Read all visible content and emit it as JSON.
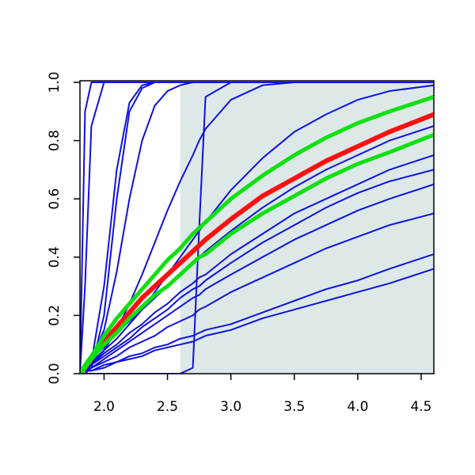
{
  "chart_data": {
    "type": "line",
    "x": [
      1.81,
      1.85,
      1.9,
      2.0,
      2.1,
      2.2,
      2.3,
      2.4,
      2.5,
      2.6,
      2.7,
      2.75,
      2.8,
      3.0,
      3.25,
      3.5,
      3.75,
      4.0,
      4.25,
      4.6
    ],
    "xlim": [
      1.81,
      4.6
    ],
    "ylim": [
      0,
      1
    ],
    "xticks": [
      {
        "value": 2,
        "label": "2.0"
      },
      {
        "value": 2.5,
        "label": "2.5"
      },
      {
        "value": 3,
        "label": "3.0"
      },
      {
        "value": 3.5,
        "label": "3.5"
      },
      {
        "value": 4,
        "label": "4.0"
      },
      {
        "value": 4.5,
        "label": "4.5"
      }
    ],
    "yticks": [
      {
        "value": 0,
        "label": "0.0"
      },
      {
        "value": 0.2,
        "label": "0.2"
      },
      {
        "value": 0.4,
        "label": "0.4"
      },
      {
        "value": 0.6,
        "label": "0.6"
      },
      {
        "value": 0.8,
        "label": "0.8"
      },
      {
        "value": 1,
        "label": "1.0"
      }
    ],
    "shade": {
      "xlim": [
        2.6,
        4.6
      ],
      "color": "#dde9e9"
    },
    "series": [
      {
        "color": "#1010e0",
        "width": 2,
        "values": [
          0,
          0.9,
          1,
          1,
          1,
          1,
          1,
          1,
          1,
          1,
          1,
          1,
          1,
          1,
          1,
          1,
          1,
          1,
          1,
          1
        ]
      },
      {
        "color": "#1010e0",
        "width": 2,
        "values": [
          0,
          0.3,
          0.85,
          1,
          1,
          1,
          1,
          1,
          1,
          1,
          1,
          1,
          1,
          1,
          1,
          1,
          1,
          1,
          1,
          1
        ]
      },
      {
        "color": "#1010e0",
        "width": 2,
        "values": [
          0,
          0,
          0.02,
          0.2,
          0.6,
          0.9,
          0.98,
          1,
          1,
          1,
          1,
          1,
          1,
          1,
          1,
          1,
          1,
          1,
          1,
          1
        ]
      },
      {
        "color": "#1010e0",
        "width": 2,
        "values": [
          0,
          0.01,
          0.04,
          0.3,
          0.7,
          0.93,
          0.99,
          1,
          1,
          1,
          1,
          1,
          1,
          1,
          1,
          1,
          1,
          1,
          1,
          1
        ]
      },
      {
        "color": "#1010e0",
        "width": 2,
        "values": [
          0,
          0.02,
          0.05,
          0.15,
          0.35,
          0.6,
          0.8,
          0.92,
          0.97,
          0.99,
          1,
          1,
          1,
          1,
          1,
          1,
          1,
          1,
          1,
          1
        ]
      },
      {
        "color": "#1010e0",
        "width": 2,
        "values": [
          0,
          0,
          0,
          0,
          0,
          0,
          0,
          0,
          0,
          0,
          0.02,
          0.5,
          0.95,
          1,
          1,
          1,
          1,
          1,
          1,
          1
        ]
      },
      {
        "color": "#1010e0",
        "width": 2,
        "values": [
          0,
          0.01,
          0.03,
          0.08,
          0.15,
          0.24,
          0.34,
          0.45,
          0.56,
          0.66,
          0.75,
          0.8,
          0.84,
          0.94,
          0.99,
          1,
          1,
          1,
          1,
          1
        ]
      },
      {
        "color": "#1010e0",
        "width": 2,
        "values": [
          0,
          0.02,
          0.04,
          0.08,
          0.12,
          0.17,
          0.22,
          0.28,
          0.34,
          0.4,
          0.46,
          0.49,
          0.52,
          0.63,
          0.74,
          0.83,
          0.89,
          0.94,
          0.97,
          0.99
        ]
      },
      {
        "color": "#1010e0",
        "width": 2,
        "values": [
          0,
          0.02,
          0.05,
          0.09,
          0.14,
          0.18,
          0.22,
          0.26,
          0.3,
          0.34,
          0.38,
          0.4,
          0.42,
          0.49,
          0.57,
          0.64,
          0.7,
          0.75,
          0.8,
          0.85
        ]
      },
      {
        "color": "#1010e0",
        "width": 2,
        "values": [
          0,
          0.01,
          0.03,
          0.06,
          0.09,
          0.12,
          0.16,
          0.19,
          0.22,
          0.26,
          0.29,
          0.3,
          0.32,
          0.38,
          0.45,
          0.51,
          0.57,
          0.62,
          0.66,
          0.7
        ]
      },
      {
        "color": "#1010e0",
        "width": 2,
        "values": [
          0,
          0.01,
          0.03,
          0.07,
          0.1,
          0.14,
          0.17,
          0.21,
          0.24,
          0.28,
          0.31,
          0.33,
          0.34,
          0.41,
          0.48,
          0.55,
          0.6,
          0.65,
          0.7,
          0.75
        ]
      },
      {
        "color": "#1010e0",
        "width": 2,
        "values": [
          0,
          0.01,
          0.02,
          0.05,
          0.08,
          0.11,
          0.14,
          0.17,
          0.2,
          0.23,
          0.26,
          0.27,
          0.29,
          0.34,
          0.4,
          0.46,
          0.51,
          0.56,
          0.6,
          0.65
        ]
      },
      {
        "color": "#1010e0",
        "width": 2,
        "values": [
          0,
          0.01,
          0.02,
          0.04,
          0.06,
          0.09,
          0.11,
          0.13,
          0.16,
          0.18,
          0.2,
          0.22,
          0.23,
          0.28,
          0.33,
          0.38,
          0.43,
          0.47,
          0.51,
          0.55
        ]
      },
      {
        "color": "#1010e0",
        "width": 2,
        "values": [
          0,
          0.01,
          0.01,
          0.03,
          0.04,
          0.06,
          0.07,
          0.09,
          0.1,
          0.12,
          0.13,
          0.14,
          0.15,
          0.17,
          0.21,
          0.25,
          0.29,
          0.32,
          0.36,
          0.41
        ]
      },
      {
        "color": "#1010e0",
        "width": 2,
        "values": [
          0,
          0.01,
          0.01,
          0.02,
          0.04,
          0.05,
          0.06,
          0.08,
          0.09,
          0.1,
          0.11,
          0.12,
          0.13,
          0.15,
          0.19,
          0.22,
          0.25,
          0.28,
          0.31,
          0.36
        ]
      },
      {
        "color": "#ff1010",
        "width": 6,
        "values": [
          0,
          0.02,
          0.05,
          0.11,
          0.16,
          0.21,
          0.26,
          0.3,
          0.34,
          0.38,
          0.42,
          0.44,
          0.46,
          0.53,
          0.61,
          0.67,
          0.73,
          0.78,
          0.83,
          0.89
        ]
      },
      {
        "color": "#10e010",
        "width": 5,
        "values": [
          0,
          0.03,
          0.06,
          0.13,
          0.19,
          0.24,
          0.29,
          0.34,
          0.39,
          0.43,
          0.48,
          0.5,
          0.52,
          0.6,
          0.68,
          0.75,
          0.81,
          0.86,
          0.9,
          0.95
        ]
      },
      {
        "color": "#10e010",
        "width": 5,
        "values": [
          0,
          0.02,
          0.05,
          0.1,
          0.14,
          0.19,
          0.23,
          0.27,
          0.3,
          0.34,
          0.38,
          0.4,
          0.41,
          0.48,
          0.55,
          0.61,
          0.67,
          0.72,
          0.76,
          0.82
        ]
      }
    ]
  }
}
